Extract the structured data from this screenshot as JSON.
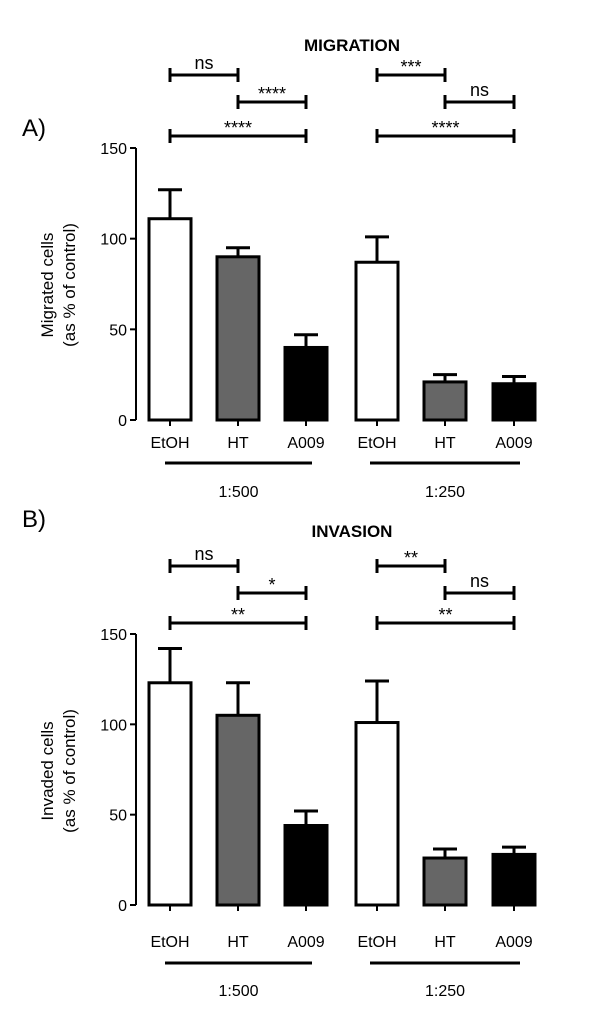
{
  "chart_data": [
    {
      "type": "bar",
      "panel_label": "A)",
      "title": "MIGRATION",
      "ylabel_lines": [
        "Migrated cells",
        "(as % of control)"
      ],
      "ylim": [
        0,
        150
      ],
      "yticks": [
        0,
        50,
        100,
        150
      ],
      "categories": [
        "EtOH",
        "HT",
        "A009",
        "EtOH",
        "HT",
        "A009"
      ],
      "groups": [
        {
          "label": "1:500",
          "categories": [
            0,
            1,
            2
          ]
        },
        {
          "label": "1:250",
          "categories": [
            3,
            4,
            5
          ]
        }
      ],
      "values": [
        111,
        90,
        40,
        87,
        21,
        20
      ],
      "errors": [
        16,
        5,
        7,
        14,
        4,
        4
      ],
      "fills": [
        "#ffffff",
        "#666666",
        "#000000",
        "#ffffff",
        "#666666",
        "#000000"
      ],
      "significance": [
        {
          "from": 0,
          "to": 1,
          "label": "ns",
          "level": 3
        },
        {
          "from": 1,
          "to": 2,
          "label": "****",
          "level": 2
        },
        {
          "from": 0,
          "to": 2,
          "label": "****",
          "level": 1
        },
        {
          "from": 3,
          "to": 4,
          "label": "***",
          "level": 3
        },
        {
          "from": 4,
          "to": 5,
          "label": "ns",
          "level": 2
        },
        {
          "from": 3,
          "to": 5,
          "label": "****",
          "level": 1
        }
      ]
    },
    {
      "type": "bar",
      "panel_label": "B)",
      "title": "INVASION",
      "ylabel_lines": [
        "Invaded cells",
        "(as % of control)"
      ],
      "ylim": [
        0,
        150
      ],
      "yticks": [
        0,
        50,
        100,
        150
      ],
      "categories": [
        "EtOH",
        "HT",
        "A009",
        "EtOH",
        "HT",
        "A009"
      ],
      "groups": [
        {
          "label": "1:500",
          "categories": [
            0,
            1,
            2
          ]
        },
        {
          "label": "1:250",
          "categories": [
            3,
            4,
            5
          ]
        }
      ],
      "values": [
        123,
        105,
        44,
        101,
        26,
        28
      ],
      "errors": [
        19,
        18,
        8,
        23,
        5,
        4
      ],
      "fills": [
        "#ffffff",
        "#666666",
        "#000000",
        "#ffffff",
        "#666666",
        "#000000"
      ],
      "significance": [
        {
          "from": 0,
          "to": 1,
          "label": "ns",
          "level": 3
        },
        {
          "from": 1,
          "to": 2,
          "label": "*",
          "level": 2
        },
        {
          "from": 0,
          "to": 2,
          "label": "**",
          "level": 1
        },
        {
          "from": 3,
          "to": 4,
          "label": "**",
          "level": 3
        },
        {
          "from": 4,
          "to": 5,
          "label": "ns",
          "level": 2
        },
        {
          "from": 3,
          "to": 5,
          "label": "**",
          "level": 1
        }
      ]
    }
  ]
}
